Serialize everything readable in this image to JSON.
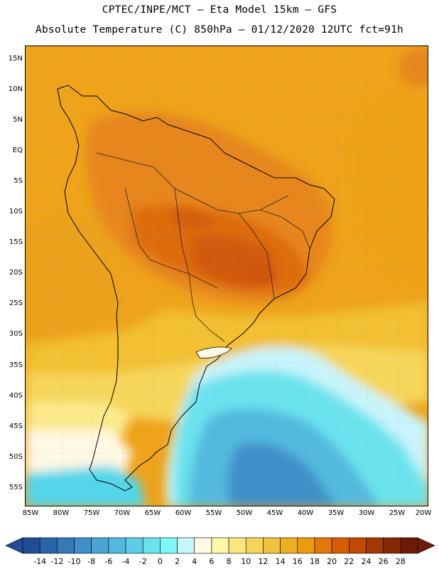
{
  "header": {
    "title_line1": "CPTEC/INPE/MCT –  Eta Model 15km – GFS",
    "title_line2": "Absolute Temperature (C) 850hPa – 01/12/2020 12UTC fct=91h"
  },
  "map": {
    "region": "South America",
    "variable": "Absolute Temperature (C)",
    "level": "850hPa",
    "lat_labels": [
      "15N",
      "10N",
      "5N",
      "EQ",
      "5S",
      "10S",
      "15S",
      "20S",
      "25S",
      "30S",
      "35S",
      "40S",
      "45S",
      "50S",
      "55S"
    ],
    "lon_labels": [
      "85W",
      "80W",
      "75W",
      "70W",
      "65W",
      "60W",
      "55W",
      "50W",
      "45W",
      "40W",
      "35W",
      "30W",
      "25W",
      "20W"
    ]
  },
  "colorbar": {
    "labels": [
      "-14",
      "-12",
      "-10",
      "-8",
      "-6",
      "-4",
      "-2",
      "0",
      "2",
      "4",
      "6",
      "8",
      "10",
      "12",
      "14",
      "16",
      "18",
      "20",
      "22",
      "24",
      "26",
      "28"
    ],
    "colors": [
      "#1f4e97",
      "#2a64a8",
      "#3579b8",
      "#3f8fc8",
      "#4aa5d3",
      "#52b9de",
      "#5ccde7",
      "#6be3ee",
      "#7ff7fa",
      "#c8f4fb",
      "#fff8e4",
      "#fff6a8",
      "#fbe680",
      "#f6d45a",
      "#f1c23c",
      "#edb020",
      "#ec9a10",
      "#e27808",
      "#d55e05",
      "#c04a04",
      "#a43804",
      "#862a06",
      "#6e1a08"
    ]
  }
}
